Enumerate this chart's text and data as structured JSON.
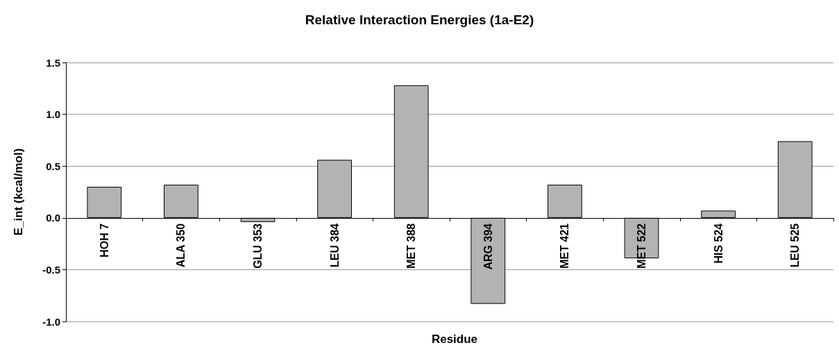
{
  "chart_data": {
    "type": "bar",
    "title": "Relative Interaction Energies (1a-E2)",
    "xlabel": "Residue",
    "ylabel": "E_int (kcal/mol)",
    "categories": [
      "HOH 7",
      "ALA 350",
      "GLU 353",
      "LEU 384",
      "MET 388",
      "ARG 394",
      "MET 421",
      "MET 522",
      "HIS 524",
      "LEU 525"
    ],
    "values": [
      0.3,
      0.32,
      -0.04,
      0.56,
      1.28,
      -0.83,
      0.32,
      -0.39,
      0.07,
      0.74
    ],
    "color": "#b3b3b3",
    "ylim": [
      -1.0,
      1.5
    ],
    "yticks": [
      {
        "value": -1.0,
        "label": "-1.0"
      },
      {
        "value": -0.5,
        "label": "-0.5"
      },
      {
        "value": 0,
        "label": "0.0"
      },
      {
        "value": 0.5,
        "label": "0.5"
      },
      {
        "value": 1.0,
        "label": "1.0"
      },
      {
        "value": 1.5,
        "label": "1.5"
      }
    ],
    "grid": "y"
  }
}
